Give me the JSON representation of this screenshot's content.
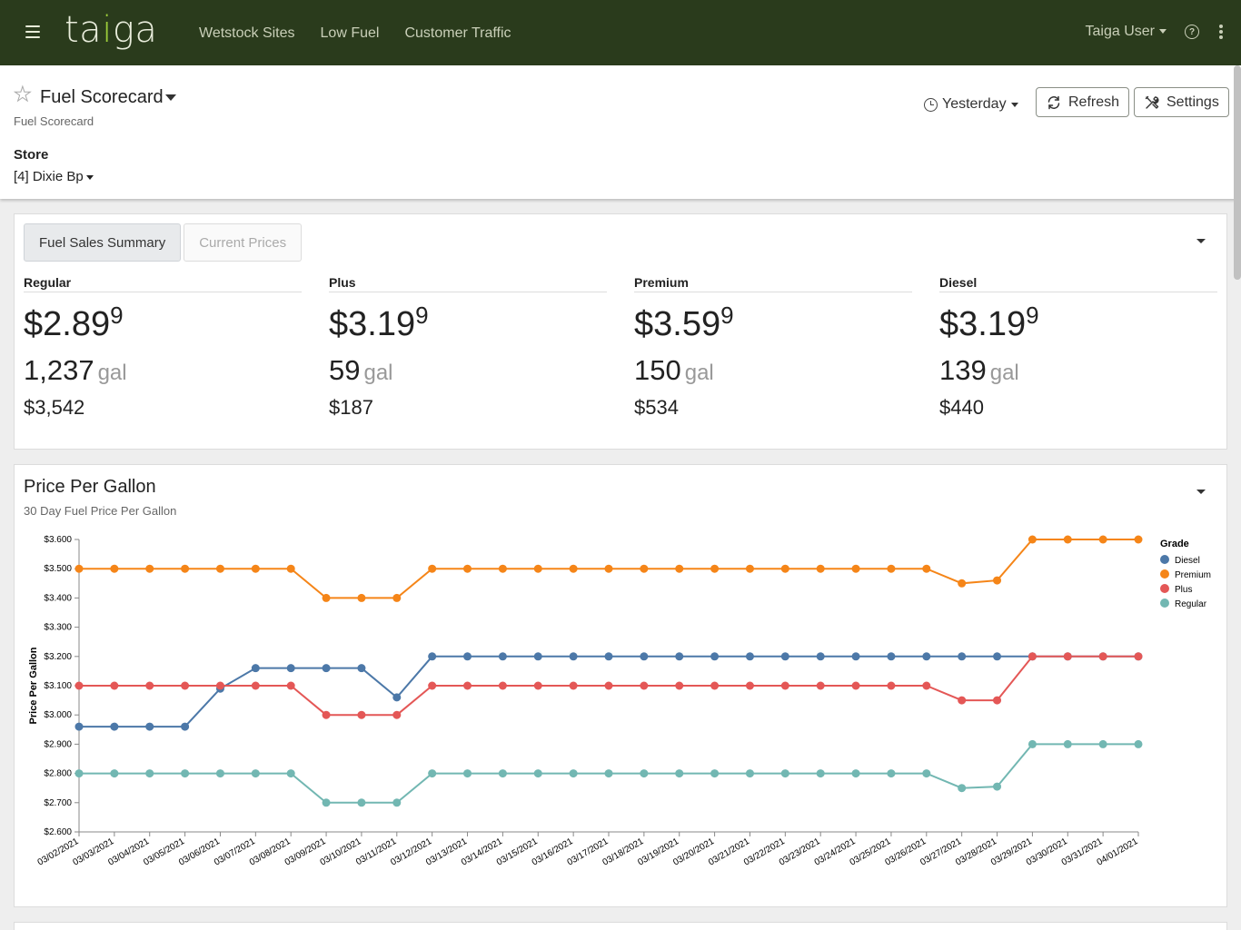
{
  "nav": {
    "logo": {
      "pre": "ta",
      "accent": "i",
      "post": "ga"
    },
    "links": [
      "Wetstock Sites",
      "Low Fuel",
      "Customer Traffic"
    ],
    "user": "Taiga User",
    "help": "?"
  },
  "header": {
    "title": "Fuel Scorecard",
    "subtitle": "Fuel Scorecard",
    "star_icon": "★",
    "store_label": "Store",
    "store_value": "[4] Dixie Bp",
    "range": "Yesterday",
    "refresh_label": "Refresh",
    "settings_label": "Settings"
  },
  "summary": {
    "tabs": [
      "Fuel Sales Summary",
      "Current Prices"
    ],
    "grades": [
      {
        "name": "Regular",
        "price": "$2.89",
        "price_sup": "9",
        "gallons": "1,237",
        "unit": "gal",
        "dollars": "$3,542"
      },
      {
        "name": "Plus",
        "price": "$3.19",
        "price_sup": "9",
        "gallons": "59",
        "unit": "gal",
        "dollars": "$187"
      },
      {
        "name": "Premium",
        "price": "$3.59",
        "price_sup": "9",
        "gallons": "150",
        "unit": "gal",
        "dollars": "$534"
      },
      {
        "name": "Diesel",
        "price": "$3.19",
        "price_sup": "9",
        "gallons": "139",
        "unit": "gal",
        "dollars": "$440"
      }
    ]
  },
  "chart_section": {
    "title": "Price Per Gallon",
    "subtitle": "30 Day Fuel Price Per Gallon"
  },
  "chart_data": {
    "type": "line",
    "ylabel": "Price Per Gallon",
    "xlabel": "",
    "ylim": [
      2.6,
      3.6
    ],
    "yticks": [
      "$2.600",
      "$2.700",
      "$2.800",
      "$2.900",
      "$3.000",
      "$3.100",
      "$3.200",
      "$3.300",
      "$3.400",
      "$3.500",
      "$3.600"
    ],
    "legend_title": "Grade",
    "legend_position": "top-right",
    "grid": false,
    "categories": [
      "03/02/2021",
      "03/03/2021",
      "03/04/2021",
      "03/05/2021",
      "03/06/2021",
      "03/07/2021",
      "03/08/2021",
      "03/09/2021",
      "03/10/2021",
      "03/11/2021",
      "03/12/2021",
      "03/13/2021",
      "03/14/2021",
      "03/15/2021",
      "03/16/2021",
      "03/17/2021",
      "03/18/2021",
      "03/19/2021",
      "03/20/2021",
      "03/21/2021",
      "03/22/2021",
      "03/23/2021",
      "03/24/2021",
      "03/25/2021",
      "03/26/2021",
      "03/27/2021",
      "03/28/2021",
      "03/29/2021",
      "03/30/2021",
      "03/31/2021",
      "04/01/2021"
    ],
    "series": [
      {
        "name": "Diesel",
        "color": "#4c78a8",
        "values": [
          2.96,
          2.96,
          2.96,
          2.96,
          3.09,
          3.16,
          3.16,
          3.16,
          3.16,
          3.06,
          3.2,
          3.2,
          3.2,
          3.2,
          3.2,
          3.2,
          3.2,
          3.2,
          3.2,
          3.2,
          3.2,
          3.2,
          3.2,
          3.2,
          3.2,
          3.2,
          3.2,
          3.2,
          3.2,
          3.2,
          3.2
        ]
      },
      {
        "name": "Premium",
        "color": "#f58518",
        "values": [
          3.5,
          3.5,
          3.5,
          3.5,
          3.5,
          3.5,
          3.5,
          3.4,
          3.4,
          3.4,
          3.5,
          3.5,
          3.5,
          3.5,
          3.5,
          3.5,
          3.5,
          3.5,
          3.5,
          3.5,
          3.5,
          3.5,
          3.5,
          3.5,
          3.5,
          3.45,
          3.46,
          3.6,
          3.6,
          3.6,
          3.6
        ]
      },
      {
        "name": "Plus",
        "color": "#e45756",
        "values": [
          3.1,
          3.1,
          3.1,
          3.1,
          3.1,
          3.1,
          3.1,
          3.0,
          3.0,
          3.0,
          3.1,
          3.1,
          3.1,
          3.1,
          3.1,
          3.1,
          3.1,
          3.1,
          3.1,
          3.1,
          3.1,
          3.1,
          3.1,
          3.1,
          3.1,
          3.05,
          3.05,
          3.2,
          3.2,
          3.2,
          3.2
        ]
      },
      {
        "name": "Regular",
        "color": "#72b7b2",
        "values": [
          2.8,
          2.8,
          2.8,
          2.8,
          2.8,
          2.8,
          2.8,
          2.7,
          2.7,
          2.7,
          2.8,
          2.8,
          2.8,
          2.8,
          2.8,
          2.8,
          2.8,
          2.8,
          2.8,
          2.8,
          2.8,
          2.8,
          2.8,
          2.8,
          2.8,
          2.75,
          2.755,
          2.9,
          2.9,
          2.9,
          2.9
        ]
      }
    ]
  }
}
